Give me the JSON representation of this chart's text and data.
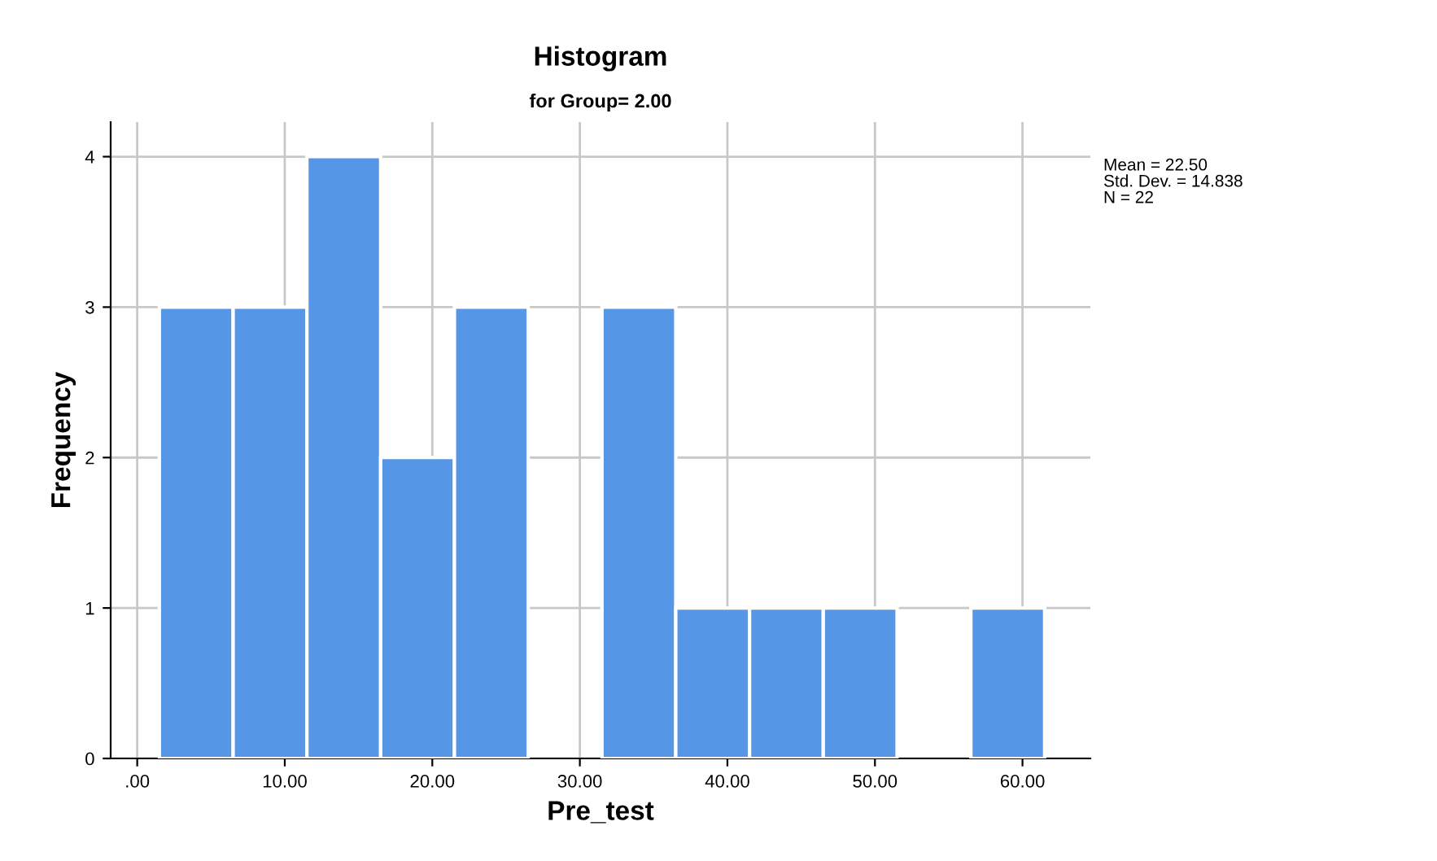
{
  "chart_data": {
    "type": "histogram",
    "title": "Histogram",
    "subtitle": "for Group= 2.00",
    "xlabel": "Pre_test",
    "ylabel": "Frequency",
    "bins": [
      1.5,
      6.5,
      11.5,
      16.5,
      21.5,
      26.5,
      31.5,
      36.5,
      41.5,
      46.5,
      51.5,
      56.5,
      61.5
    ],
    "values": [
      3,
      3,
      4,
      2,
      3,
      0,
      3,
      1,
      1,
      1,
      0,
      1
    ],
    "color": "#5596e6",
    "xlim": [
      -1.8,
      64.6
    ],
    "ylim": [
      0,
      4.23
    ],
    "xticks": [
      {
        "value": 0,
        "label": ".00"
      },
      {
        "value": 10,
        "label": "10.00"
      },
      {
        "value": 20,
        "label": "20.00"
      },
      {
        "value": 30,
        "label": "30.00"
      },
      {
        "value": 40,
        "label": "40.00"
      },
      {
        "value": 50,
        "label": "50.00"
      },
      {
        "value": 60,
        "label": "60.00"
      }
    ],
    "yticks": [
      0,
      1,
      2,
      3,
      4
    ],
    "grid": true,
    "annotations": [
      "Mean = 22.50",
      "Std. Dev. = 14.838",
      "N = 22"
    ]
  }
}
